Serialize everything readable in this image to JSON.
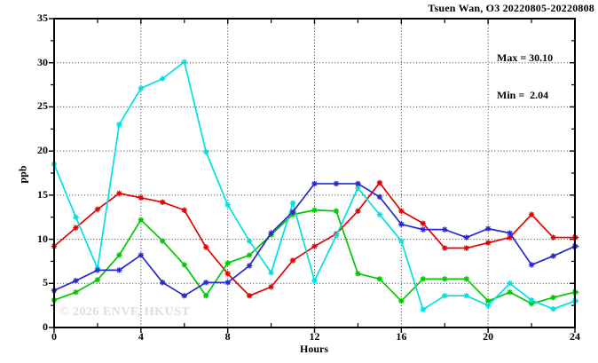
{
  "watermark": "© 2026 ENVF, HKUST",
  "chart_data": {
    "type": "line",
    "title": "Tsuen Wan, O3 20220805-20220808",
    "annotations": {
      "max": "Max = 30.10",
      "min": "Min =  2.04"
    },
    "xlabel": "Hours",
    "ylabel": "ppb",
    "xlim": [
      0,
      24
    ],
    "ylim": [
      0,
      35
    ],
    "x_major_ticks": [
      0,
      4,
      8,
      12,
      16,
      20,
      24
    ],
    "x_minor_ticks": [
      2,
      6,
      10,
      14,
      18,
      22
    ],
    "y_major_ticks": [
      0,
      5,
      10,
      15,
      20,
      25,
      30,
      35
    ],
    "y_minor_ticks": [
      2.5,
      7.5,
      12.5,
      17.5,
      22.5,
      27.5,
      32.5
    ],
    "x_gridlines": [
      4,
      8,
      12,
      16,
      20
    ],
    "y_gridlines": [
      5,
      10,
      15,
      20,
      25,
      30
    ],
    "grid_style": "dotted",
    "legend_position": "none",
    "marker": "asterisk",
    "end_arrow": true,
    "x": [
      0,
      1,
      2,
      3,
      4,
      5,
      6,
      7,
      8,
      9,
      10,
      11,
      12,
      13,
      14,
      15,
      16,
      17,
      18,
      19,
      20,
      21,
      22,
      23,
      24
    ],
    "series": [
      {
        "name": "series-red",
        "color": "#e60000",
        "values": [
          9.2,
          11.3,
          13.4,
          15.2,
          14.7,
          14.2,
          13.3,
          9.1,
          6.1,
          3.6,
          4.6,
          7.6,
          9.2,
          10.6,
          13.2,
          16.4,
          13.2,
          11.8,
          9.0,
          9.0,
          9.6,
          10.2,
          12.8,
          10.2,
          10.2
        ]
      },
      {
        "name": "series-green",
        "color": "#00c800",
        "values": [
          3.1,
          4.0,
          5.4,
          8.2,
          12.2,
          9.8,
          7.1,
          3.6,
          7.3,
          8.2,
          10.5,
          12.8,
          13.3,
          13.2,
          6.1,
          5.5,
          3.0,
          5.5,
          5.5,
          5.5,
          3.0,
          4.0,
          2.7,
          3.4,
          4.0
        ]
      },
      {
        "name": "series-cyan",
        "color": "#00e0e0",
        "values": [
          18.5,
          12.5,
          6.7,
          23.0,
          27.1,
          28.2,
          30.1,
          19.9,
          13.9,
          9.8,
          6.2,
          14.1,
          5.3,
          10.4,
          15.8,
          12.8,
          9.8,
          2.04,
          3.6,
          3.6,
          2.5,
          5.0,
          3.1,
          2.1,
          3.0
        ]
      },
      {
        "name": "series-blue",
        "color": "#2929cc",
        "values": [
          4.2,
          5.3,
          6.5,
          6.5,
          8.2,
          5.1,
          3.6,
          5.1,
          5.1,
          7.0,
          10.7,
          13.1,
          16.3,
          16.3,
          16.3,
          14.8,
          11.7,
          11.1,
          11.1,
          10.2,
          11.2,
          10.7,
          7.1,
          8.1,
          9.2
        ]
      }
    ]
  }
}
